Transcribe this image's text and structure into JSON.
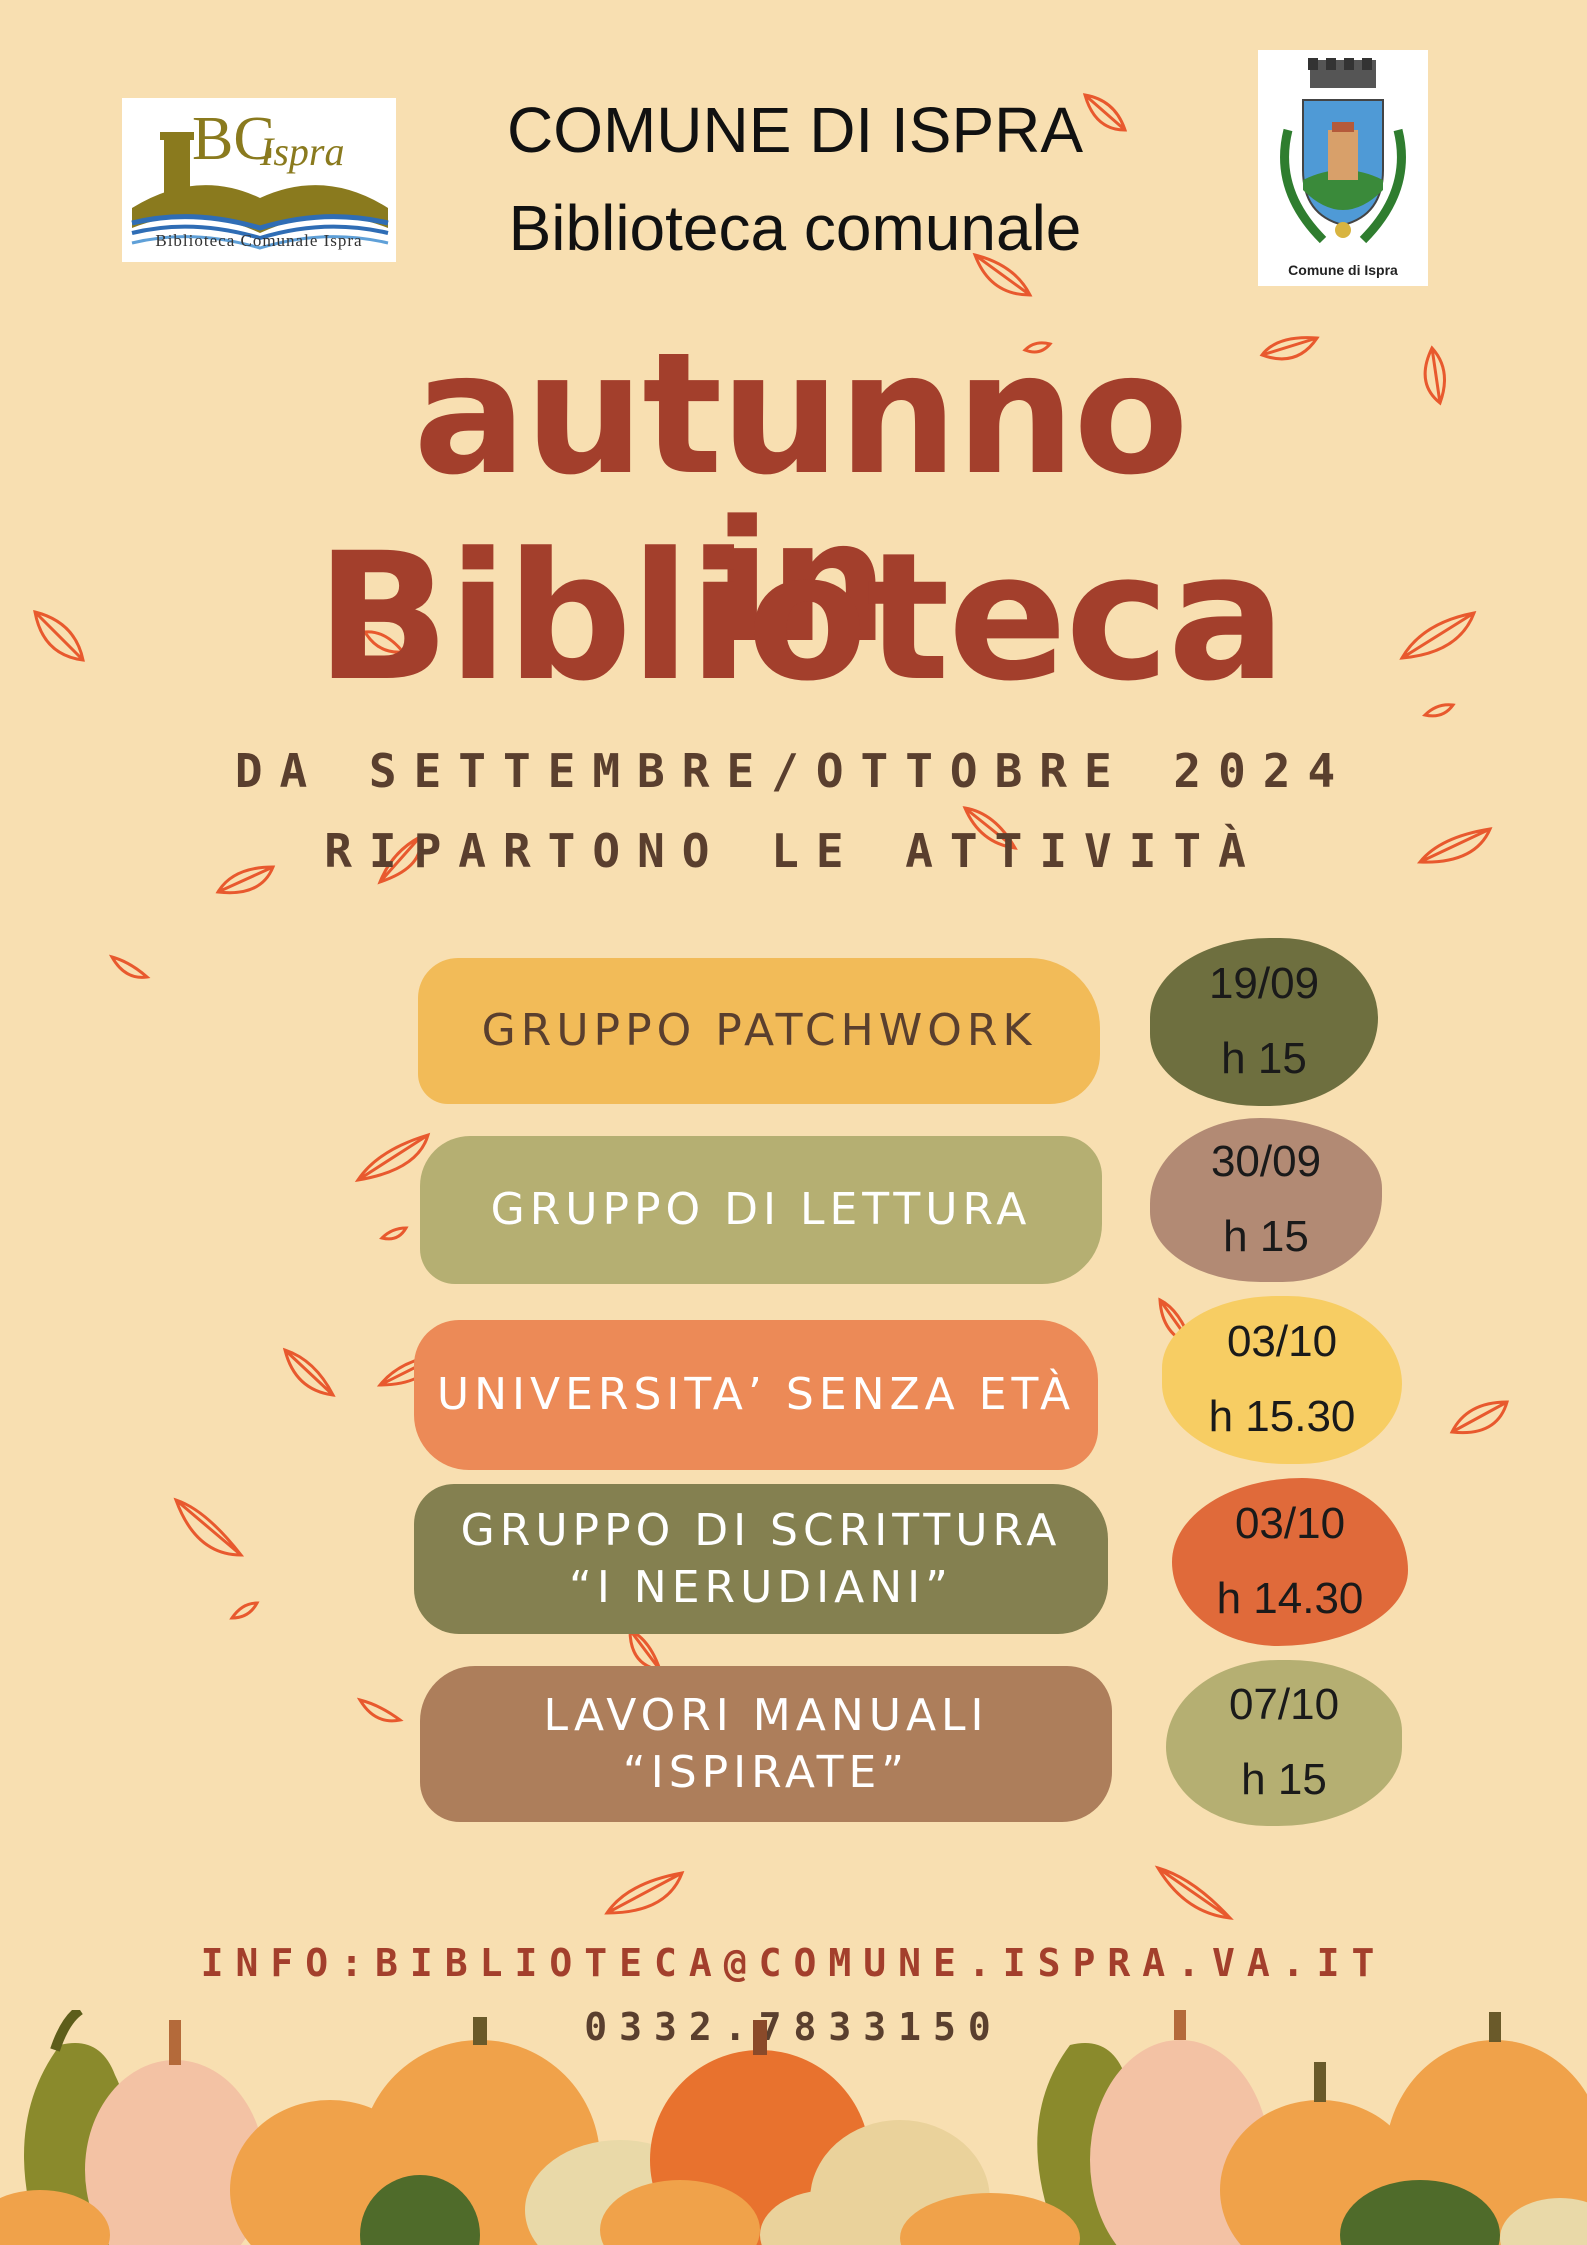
{
  "header": {
    "line1": "COMUNE DI ISPRA",
    "line2": "Biblioteca comunale"
  },
  "logo_left": {
    "text_main": "BC",
    "text_script": "Ispra",
    "caption": "Biblioteca Comunale Ispra"
  },
  "logo_right": {
    "caption": "Comune di Ispra"
  },
  "title": {
    "line1": "autunno in",
    "line2": "Biblioteca"
  },
  "subtitle": {
    "line1": "DA SETTEMBRE/OTTOBRE 2024",
    "line2": "RIPARTONO LE ATTIVITÀ"
  },
  "activities": [
    {
      "lines": [
        "GRUPPO PATCHWORK"
      ],
      "date": "19/09",
      "time": "h  15",
      "pill_color": "#f2bb58",
      "text_color": "#5a3f2e",
      "date_color": "#6e6f3f"
    },
    {
      "lines": [
        "GRUPPO DI LETTURA"
      ],
      "date": "30/09",
      "time": "h  15",
      "pill_color": "#b5af72",
      "text_color": "#ffffff",
      "date_color": "#b28a74"
    },
    {
      "lines": [
        "UNIVERSITA’ SENZA ETÀ"
      ],
      "date": "03/10",
      "time": "h  15.30",
      "pill_color": "#ec8a57",
      "text_color": "#ffffff",
      "date_color": "#f7cd63"
    },
    {
      "lines": [
        "GRUPPO DI SCRITTURA",
        "“I NERUDIANI”"
      ],
      "date": "03/10",
      "time": "h  14.30",
      "pill_color": "#848050",
      "text_color": "#ffffff",
      "date_color": "#e06a3a"
    },
    {
      "lines": [
        "LAVORI MANUALI",
        "“ISPIRATE”"
      ],
      "date": "07/10",
      "time": "h  15",
      "pill_color": "#ad7e5b",
      "text_color": "#ffffff",
      "date_color": "#b5af72"
    }
  ],
  "contact": {
    "email": "INFO:BIBLIOTECA@COMUNE.ISPRA.VA.IT",
    "phone": "0332.7833150"
  },
  "colors": {
    "background": "#f8dfb1",
    "title": "#a33f2c",
    "leaf": "#e8592e"
  }
}
